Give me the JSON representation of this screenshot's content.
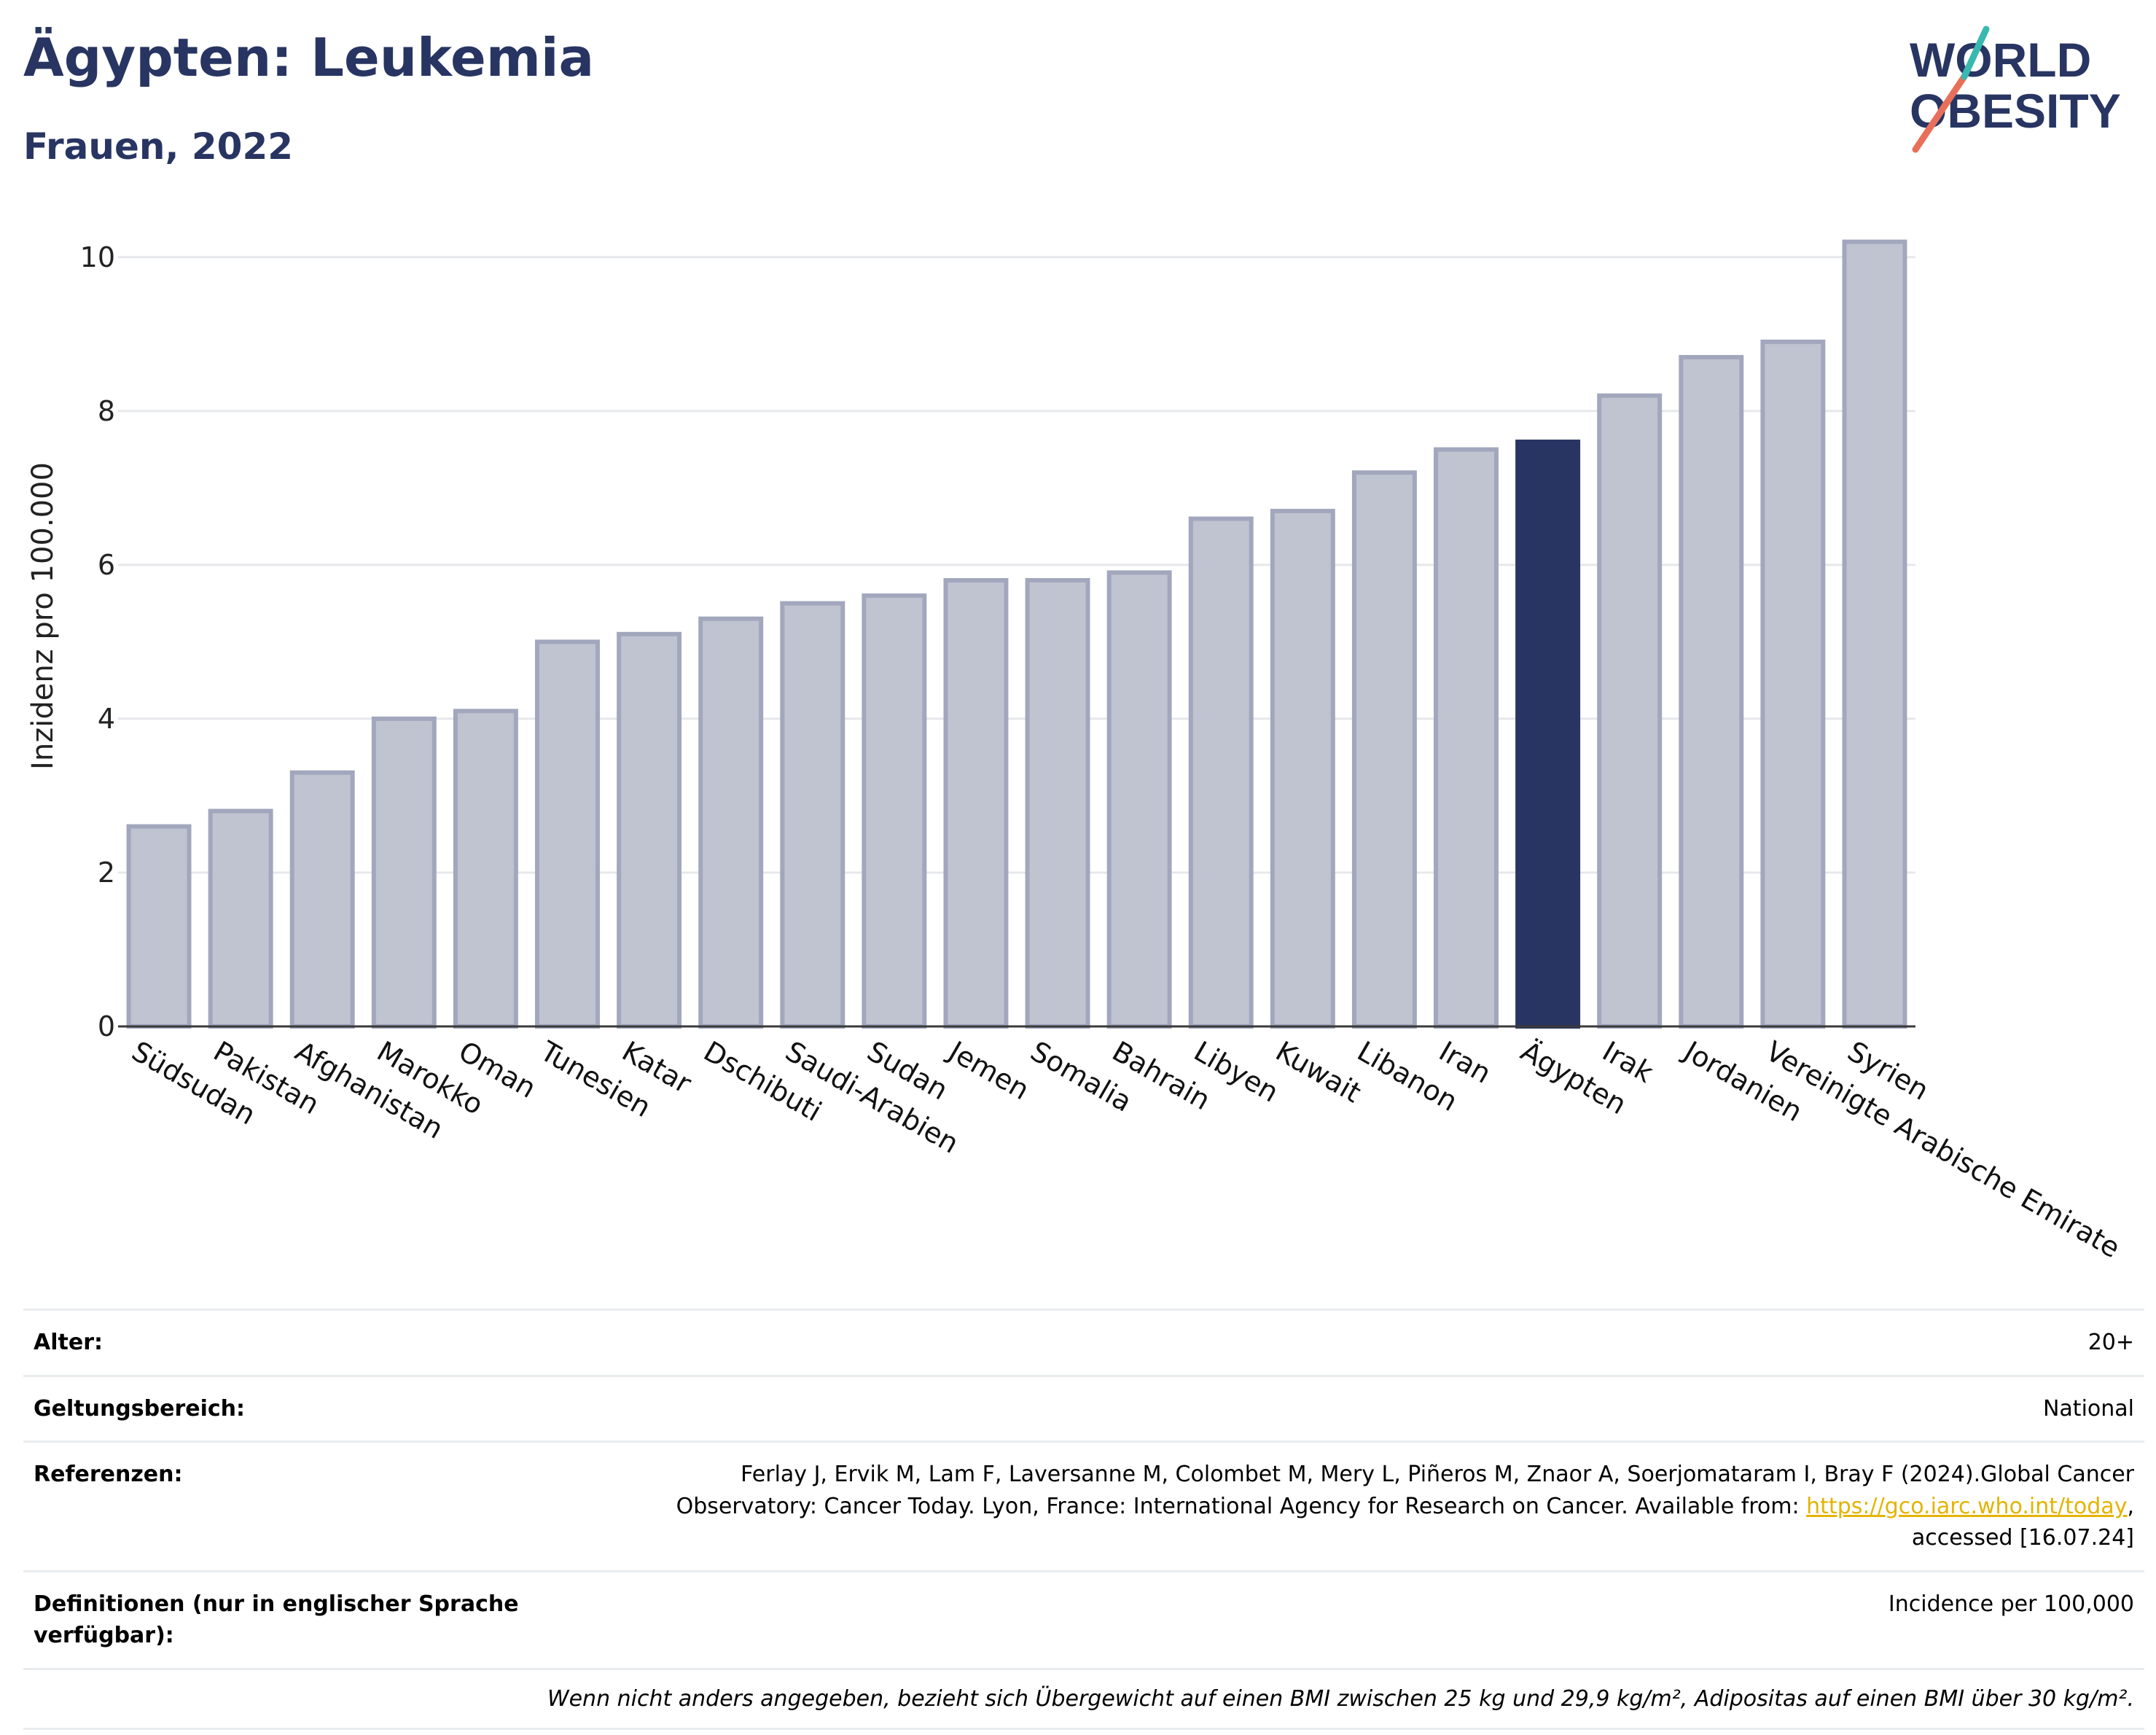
{
  "header": {
    "title": "Ägypten: Leukemia",
    "subtitle": "Frauen, 2022"
  },
  "logo": {
    "line1": "WORLD",
    "line2": "OBESITY"
  },
  "chart_data": {
    "type": "bar",
    "title": "Ägypten: Leukemia",
    "subtitle": "Frauen, 2022",
    "xlabel": "",
    "ylabel": "Inzidenz pro 100.000",
    "ylim": [
      0,
      10.5
    ],
    "yticks": [
      0,
      2,
      4,
      6,
      8,
      10
    ],
    "grid": true,
    "categories": [
      "Südsudan",
      "Pakistan",
      "Afghanistan",
      "Marokko",
      "Oman",
      "Tunesien",
      "Katar",
      "Dschibuti",
      "Saudi-Arabien",
      "Sudan",
      "Jemen",
      "Somalia",
      "Bahrain",
      "Libyen",
      "Kuwait",
      "Libanon",
      "Iran",
      "Ägypten",
      "Irak",
      "Jordanien",
      "Vereinigte Arabische Emirate",
      "Syrien"
    ],
    "values": [
      2.6,
      2.8,
      3.3,
      4.0,
      4.1,
      5.0,
      5.1,
      5.3,
      5.5,
      5.6,
      5.8,
      5.8,
      5.9,
      6.6,
      6.7,
      7.2,
      7.5,
      7.6,
      8.2,
      8.7,
      8.9,
      10.2
    ],
    "highlight": "Ägypten",
    "colors": {
      "bar": "#c0c3d0",
      "bar_edge": "#a2a7bd",
      "highlight": "#283562",
      "grid": "#e6e8ec",
      "axis": "#3a3a3a"
    }
  },
  "info": {
    "rows": [
      {
        "label": "Alter:",
        "value": "20+"
      },
      {
        "label": "Geltungsbereich:",
        "value": "National"
      }
    ],
    "references": {
      "label": "Referenzen:",
      "text_before": "Ferlay J, Ervik M, Lam F, Laversanne M, Colombet M, Mery L, Piñeros M, Znaor A, Soerjomataram I, Bray F (2024).Global Cancer Observatory: Cancer Today. Lyon, France: International Agency for Research on Cancer. Available from: ",
      "link": "https://gco.iarc.who.int/today",
      "text_after": ", accessed [16.07.24]"
    },
    "definitions": {
      "label": "Definitionen (nur in englischer Sprache verfügbar):",
      "value": "Incidence per 100,000"
    },
    "note": "Wenn nicht anders angegeben, bezieht sich Übergewicht auf einen BMI zwischen 25 kg und 29,9 kg/m², Adipositas auf einen BMI über 30 kg/m²."
  }
}
